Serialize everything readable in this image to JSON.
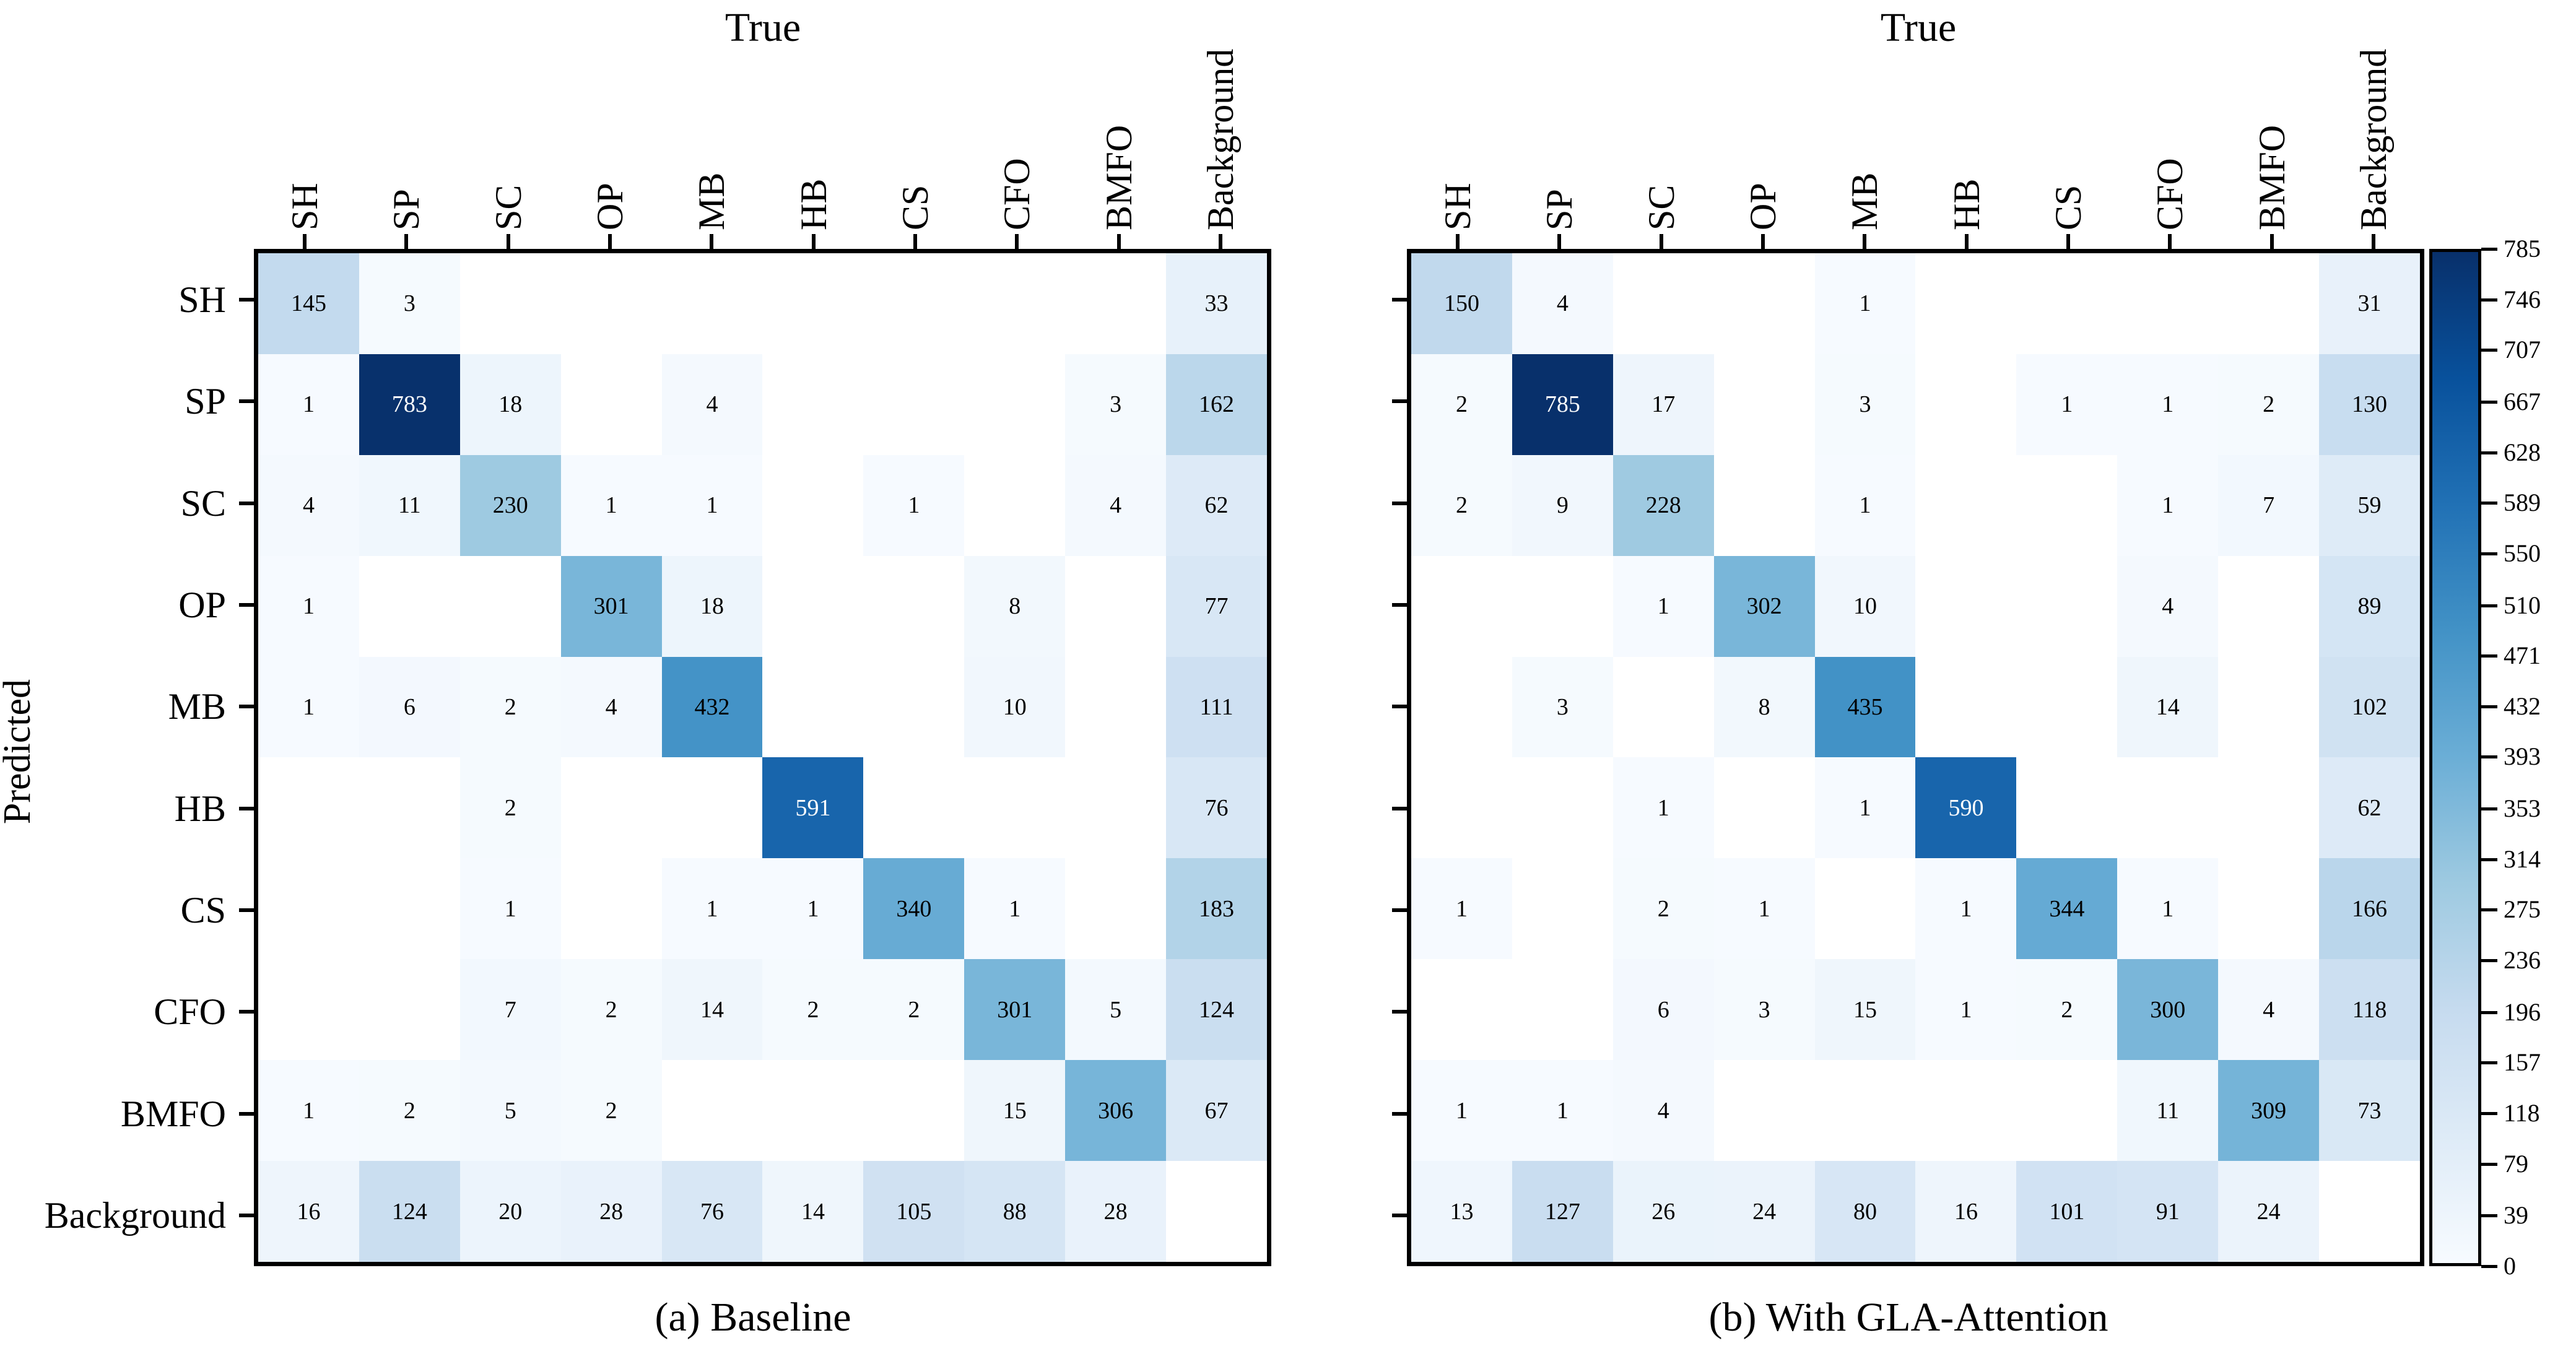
{
  "figure": {
    "y_axis_label": "Predicted",
    "background_color": "#ffffff",
    "colorbar": {
      "vmin": 0,
      "vmax": 785,
      "ticks": [
        785,
        746,
        707,
        667,
        628,
        589,
        550,
        510,
        471,
        432,
        393,
        353,
        314,
        275,
        236,
        196,
        157,
        118,
        79,
        39,
        0
      ],
      "colormap_name": "Blues",
      "colormap_stops": [
        "#f7fbff",
        "#deebf7",
        "#c6dbef",
        "#9ecae1",
        "#6baed6",
        "#4292c6",
        "#2171b5",
        "#08519c",
        "#08306b"
      ],
      "zero_cell_color": "#ffffff",
      "dark_cell_text_color": "#ffffff",
      "light_cell_text_color": "#000000"
    }
  },
  "chart_data": [
    {
      "type": "heatmap",
      "x_axis_title": "True",
      "y_axis_title": "Predicted",
      "caption": "(a) Baseline",
      "legend_position": "shared-right-colorbar",
      "vmin": 0,
      "vmax": 785,
      "categories_x": [
        "SH",
        "SP",
        "SC",
        "OP",
        "MB",
        "HB",
        "CS",
        "CFO",
        "BMFO",
        "Background"
      ],
      "categories_y": [
        "SH",
        "SP",
        "SC",
        "OP",
        "MB",
        "HB",
        "CS",
        "CFO",
        "BMFO",
        "Background"
      ],
      "rows": [
        [
          145,
          3,
          0,
          0,
          0,
          0,
          0,
          0,
          0,
          33
        ],
        [
          1,
          783,
          18,
          0,
          4,
          0,
          0,
          0,
          3,
          162
        ],
        [
          4,
          11,
          230,
          1,
          1,
          0,
          1,
          0,
          4,
          62
        ],
        [
          1,
          0,
          0,
          301,
          18,
          0,
          0,
          8,
          0,
          77
        ],
        [
          1,
          6,
          2,
          4,
          432,
          0,
          0,
          10,
          0,
          111
        ],
        [
          0,
          0,
          2,
          0,
          0,
          591,
          0,
          0,
          0,
          76
        ],
        [
          0,
          0,
          1,
          0,
          1,
          1,
          340,
          1,
          0,
          183
        ],
        [
          0,
          0,
          7,
          2,
          14,
          2,
          2,
          301,
          5,
          124
        ],
        [
          1,
          2,
          5,
          2,
          0,
          0,
          0,
          15,
          306,
          67
        ],
        [
          16,
          124,
          20,
          28,
          76,
          14,
          105,
          88,
          28,
          0
        ]
      ]
    },
    {
      "type": "heatmap",
      "x_axis_title": "True",
      "y_axis_title": "Predicted",
      "caption": "(b) With GLA-Attention",
      "legend_position": "shared-right-colorbar",
      "vmin": 0,
      "vmax": 785,
      "categories_x": [
        "SH",
        "SP",
        "SC",
        "OP",
        "MB",
        "HB",
        "CS",
        "CFO",
        "BMFO",
        "Background"
      ],
      "categories_y": [
        "SH",
        "SP",
        "SC",
        "OP",
        "MB",
        "HB",
        "CS",
        "CFO",
        "BMFO",
        "Background"
      ],
      "rows": [
        [
          150,
          4,
          0,
          0,
          1,
          0,
          0,
          0,
          0,
          31
        ],
        [
          2,
          785,
          17,
          0,
          3,
          0,
          1,
          1,
          2,
          130
        ],
        [
          2,
          9,
          228,
          0,
          1,
          0,
          0,
          1,
          7,
          59
        ],
        [
          0,
          0,
          1,
          302,
          10,
          0,
          0,
          4,
          0,
          89
        ],
        [
          0,
          3,
          0,
          8,
          435,
          0,
          0,
          14,
          0,
          102
        ],
        [
          0,
          0,
          1,
          0,
          1,
          590,
          0,
          0,
          0,
          62
        ],
        [
          1,
          0,
          2,
          1,
          0,
          1,
          344,
          1,
          0,
          166
        ],
        [
          0,
          0,
          6,
          3,
          15,
          1,
          2,
          300,
          4,
          118
        ],
        [
          1,
          1,
          4,
          0,
          0,
          0,
          0,
          11,
          309,
          73
        ],
        [
          13,
          127,
          26,
          24,
          80,
          16,
          101,
          91,
          24,
          0
        ]
      ]
    }
  ]
}
